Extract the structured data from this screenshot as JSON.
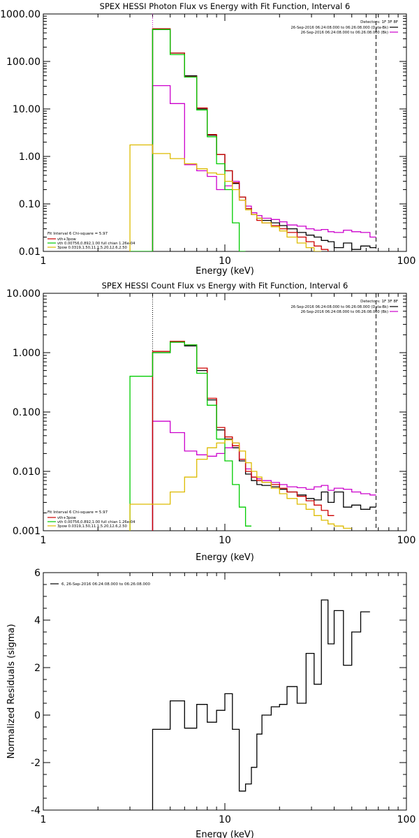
{
  "chart_data": [
    {
      "type": "line",
      "title": "SPEX HESSI Photon Flux vs Energy with Fit Function, Interval 6",
      "xlabel": "Energy (keV)",
      "ylabel": "",
      "x_scale": "log",
      "y_scale": "log",
      "xlim": [
        1,
        100
      ],
      "ylim": [
        0.01,
        1000
      ],
      "x_ticks": [
        "1",
        "10",
        "100"
      ],
      "y_ticks": [
        "0.01",
        "0.10",
        "1.00",
        "10.00",
        "100.00",
        "1000.00"
      ],
      "legend_top_right": {
        "header": "Detectors: 1F 3F 8F",
        "lines": [
          {
            "text": "26-Sep-2016 06:24:08.000 to 06:26:08.000 (Data-Bk)",
            "color": "#000000"
          },
          {
            "text": "26-Sep-2016 06:24:08.000 to 06:26:08.000 (Bk)",
            "color": "#cc00cc"
          }
        ]
      },
      "legend_bottom_left": {
        "header": "Fit Interval 6   Chi-square = 5.97",
        "lines": [
          {
            "text": "vth+3pow",
            "color": "#cc0000"
          },
          {
            "text": "vth 0.00756,0.892,1.00  full chian 1.26e-04",
            "color": "#00cc00"
          },
          {
            "text": "3pow 0.0319,1.50,11.1,5.20,12.6,2.50",
            "color": "#ddbb00"
          }
        ]
      },
      "vlines": [
        {
          "x": 4.0,
          "style": "dotted",
          "color": "#cc00cc"
        },
        {
          "x": 68.0,
          "style": "dashed",
          "color": "#000000"
        }
      ],
      "edges": [
        3.0,
        4.0,
        5.0,
        6.0,
        7.0,
        8.0,
        9.0,
        10.0,
        11.0,
        12.0,
        13.0,
        14.0,
        15.0,
        16.0,
        18.0,
        20.0,
        22.0,
        25.0,
        28.0,
        31.0,
        34.0,
        37.0,
        40.0,
        45.0,
        50.0,
        56.0,
        63.0,
        68.0
      ],
      "series": [
        {
          "name": "Data-Bk",
          "color": "#000000",
          "start": 1,
          "values": [
            480,
            150,
            50,
            10,
            2.8,
            1.1,
            0.5,
            0.27,
            0.14,
            0.08,
            0.06,
            0.05,
            0.045,
            0.04,
            0.035,
            0.03,
            0.025,
            0.022,
            0.02,
            0.017,
            0.016,
            0.012,
            0.015,
            0.011,
            0.013,
            0.012
          ]
        },
        {
          "name": "Bk",
          "color": "#cc00cc",
          "start": 1,
          "values": [
            31,
            13,
            0.67,
            0.5,
            0.38,
            0.2,
            0.24,
            0.3,
            0.12,
            0.09,
            0.065,
            0.057,
            0.05,
            0.047,
            0.042,
            0.036,
            0.034,
            0.03,
            0.028,
            0.029,
            0.026,
            0.025,
            0.028,
            0.026,
            0.025,
            0.02
          ]
        },
        {
          "name": "vth+3pow",
          "color": "#cc0000",
          "start": 1,
          "values": [
            490,
            150,
            48,
            10.5,
            2.9,
            1.1,
            0.5,
            0.28,
            0.14,
            0.08,
            0.06,
            0.045,
            0.04,
            0.035,
            0.03,
            0.025,
            0.02,
            0.016,
            0.013,
            0.011,
            0.009
          ]
        },
        {
          "name": "vth",
          "color": "#00cc00",
          "start": 0,
          "values": [
            0.01,
            470,
            140,
            47,
            9.5,
            2.6,
            0.7,
            0.2,
            0.04,
            0.01
          ]
        },
        {
          "name": "3pow",
          "color": "#ddbb00",
          "start": 0,
          "values": [
            1.75,
            1.15,
            0.9,
            0.7,
            0.55,
            0.45,
            0.42,
            0.3,
            0.2,
            0.12,
            0.075,
            0.06,
            0.05,
            0.04,
            0.033,
            0.027,
            0.02,
            0.015,
            0.012,
            0.01
          ]
        }
      ]
    },
    {
      "type": "line",
      "title": "SPEX HESSI Count Flux vs Energy with Fit Function, Interval 6",
      "xlabel": "Energy (keV)",
      "ylabel": "",
      "x_scale": "log",
      "y_scale": "log",
      "xlim": [
        1,
        100
      ],
      "ylim": [
        0.001,
        10
      ],
      "x_ticks": [
        "1",
        "10",
        "100"
      ],
      "y_ticks": [
        "0.001",
        "0.010",
        "0.100",
        "1.000",
        "10.000"
      ],
      "legend_top_right": {
        "header": "Detectors: 1F 3F 8F",
        "lines": [
          {
            "text": "26-Sep-2016 06:24:08.000 to 06:26:08.000 (Data-Bk)",
            "color": "#000000"
          },
          {
            "text": "26-Sep-2016 06:24:08.000 to 06:26:08.000 (Bk)",
            "color": "#cc00cc"
          }
        ]
      },
      "legend_bottom_left": {
        "header": "Fit Interval 6   Chi-square = 5.97",
        "lines": [
          {
            "text": "vth+3pow",
            "color": "#cc0000"
          },
          {
            "text": "vth 0.00756,0.892,1.00  full chian 1.26e-04",
            "color": "#00cc00"
          },
          {
            "text": "3pow 0.0319,1.50,11.1,5.20,12.6,2.50",
            "color": "#ddbb00"
          }
        ]
      },
      "vlines": [
        {
          "x": 4.0,
          "style": "dotted",
          "color": "#000000"
        },
        {
          "x": 68.0,
          "style": "dashed",
          "color": "#000000"
        }
      ],
      "edges": [
        3.0,
        4.0,
        5.0,
        6.0,
        7.0,
        8.0,
        9.0,
        10.0,
        11.0,
        12.0,
        13.0,
        14.0,
        15.0,
        16.0,
        18.0,
        20.0,
        22.0,
        25.0,
        28.0,
        31.0,
        34.0,
        37.0,
        40.0,
        45.0,
        50.0,
        56.0,
        63.0,
        68.0
      ],
      "series": [
        {
          "name": "Data-Bk",
          "color": "#000000",
          "start": 1,
          "values": [
            1.0,
            1.5,
            1.3,
            0.5,
            0.16,
            0.05,
            0.035,
            0.025,
            0.015,
            0.009,
            0.007,
            0.006,
            0.0058,
            0.0055,
            0.005,
            0.0045,
            0.004,
            0.0035,
            0.0033,
            0.0045,
            0.003,
            0.0045,
            0.0025,
            0.0027,
            0.0023,
            0.0025
          ]
        },
        {
          "name": "Bk",
          "color": "#cc00cc",
          "start": 1,
          "values": [
            0.07,
            0.045,
            0.022,
            0.019,
            0.018,
            0.02,
            0.025,
            0.03,
            0.016,
            0.011,
            0.008,
            0.0075,
            0.007,
            0.0065,
            0.006,
            0.0055,
            0.0053,
            0.005,
            0.0055,
            0.0058,
            0.0048,
            0.0052,
            0.005,
            0.0045,
            0.0042,
            0.004
          ]
        },
        {
          "name": "vth+3pow",
          "color": "#cc0000",
          "start": 1,
          "values": [
            1.05,
            1.55,
            1.35,
            0.55,
            0.17,
            0.055,
            0.038,
            0.027,
            0.016,
            0.01,
            0.008,
            0.007,
            0.0065,
            0.006,
            0.0052,
            0.0045,
            0.0038,
            0.0032,
            0.0027,
            0.0022,
            0.0018
          ]
        },
        {
          "name": "vth",
          "color": "#00cc00",
          "start": 0,
          "values": [
            0.4,
            1.0,
            1.5,
            1.35,
            0.45,
            0.13,
            0.035,
            0.015,
            0.006,
            0.0025,
            0.0012
          ]
        },
        {
          "name": "3pow",
          "color": "#ddbb00",
          "start": 0,
          "values": [
            0.0028,
            0.0028,
            0.0045,
            0.008,
            0.016,
            0.025,
            0.03,
            0.034,
            0.03,
            0.022,
            0.014,
            0.01,
            0.008,
            0.0065,
            0.0052,
            0.0042,
            0.0035,
            0.0028,
            0.0023,
            0.0018,
            0.0015,
            0.0013,
            0.0012,
            0.0011
          ]
        }
      ]
    },
    {
      "type": "line",
      "title": "",
      "xlabel": "Energy (keV)",
      "ylabel": "Normalized Residuals (sigma)",
      "x_scale": "log",
      "y_scale": "linear",
      "xlim": [
        1,
        100
      ],
      "ylim": [
        -4,
        6
      ],
      "x_ticks": [
        "1",
        "10",
        "100"
      ],
      "y_ticks": [
        "-4",
        "-2",
        "0",
        "2",
        "4",
        "6"
      ],
      "legend_top_left": {
        "lines": [
          {
            "text": "6, 26-Sep-2016 06:24:08.000 to 06:26:08.000",
            "color": "#000000"
          }
        ]
      },
      "edges": [
        4.0,
        5.0,
        6.0,
        7.0,
        8.0,
        9.0,
        10.0,
        11.0,
        12.0,
        13.0,
        14.0,
        15.0,
        16.0,
        18.0,
        20.0,
        22.0,
        25.0,
        28.0,
        31.0,
        34.0,
        37.0,
        40.0,
        45.0,
        50.0,
        56.0,
        63.0,
        68.0
      ],
      "series": [
        {
          "name": "Residuals",
          "color": "#000000",
          "start": 0,
          "values": [
            -0.6,
            0.6,
            -0.55,
            0.45,
            -0.3,
            0.2,
            0.9,
            -0.6,
            -3.2,
            -2.9,
            -2.2,
            -0.8,
            0.0,
            0.35,
            0.45,
            1.2,
            0.5,
            2.6,
            1.3,
            4.85,
            3.0,
            4.4,
            2.1,
            3.5,
            4.35
          ]
        }
      ]
    }
  ]
}
